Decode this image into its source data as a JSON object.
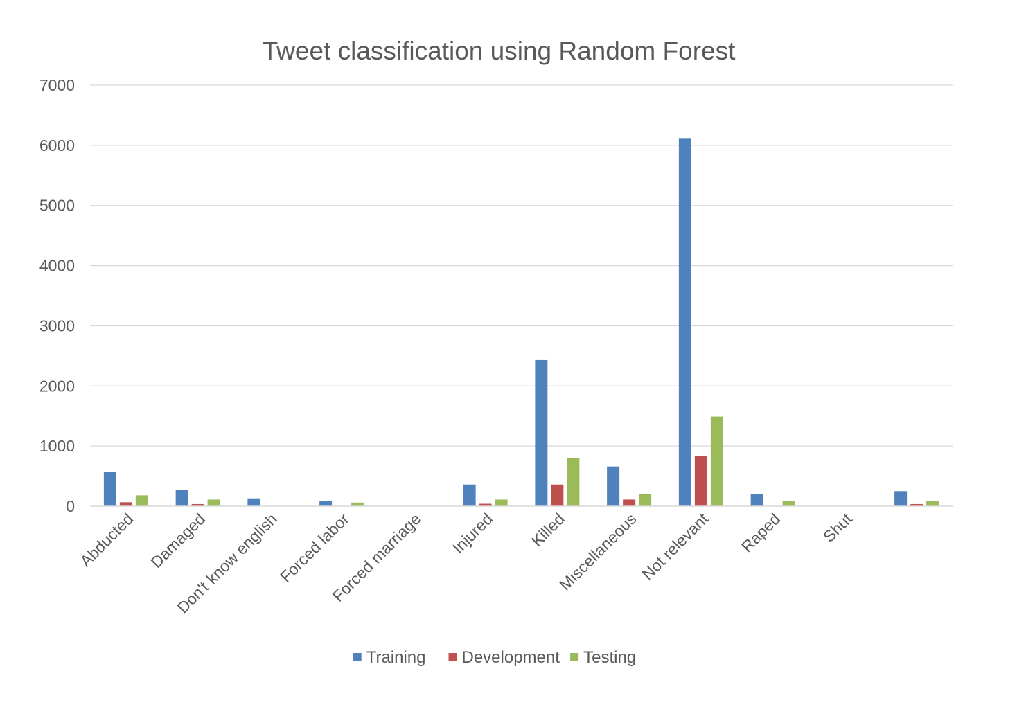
{
  "chart_data": {
    "type": "bar",
    "title": "Tweet classification using Random Forest",
    "xlabel": "",
    "ylabel": "",
    "ylim": [
      0,
      7000
    ],
    "yticks": [
      0,
      1000,
      2000,
      3000,
      4000,
      5000,
      6000,
      7000
    ],
    "grid": true,
    "legend_position": "bottom",
    "categories": [
      "Abducted",
      "Damaged",
      "Don't know english",
      "Forced labor",
      "Forced marriage",
      "Injured",
      "Killed",
      "Miscellaneous",
      "Not relevant",
      "Raped",
      "Shut",
      ""
    ],
    "series": [
      {
        "name": "Training",
        "color": "#4f81bd",
        "values": [
          570,
          270,
          130,
          90,
          0,
          360,
          2430,
          660,
          6110,
          200,
          0,
          250
        ]
      },
      {
        "name": "Development",
        "color": "#c0504d",
        "values": [
          65,
          35,
          0,
          0,
          0,
          40,
          360,
          110,
          840,
          0,
          0,
          35
        ]
      },
      {
        "name": "Testing",
        "color": "#9bbb59",
        "values": [
          180,
          110,
          0,
          60,
          0,
          110,
          800,
          200,
          1490,
          90,
          0,
          90
        ]
      }
    ]
  }
}
